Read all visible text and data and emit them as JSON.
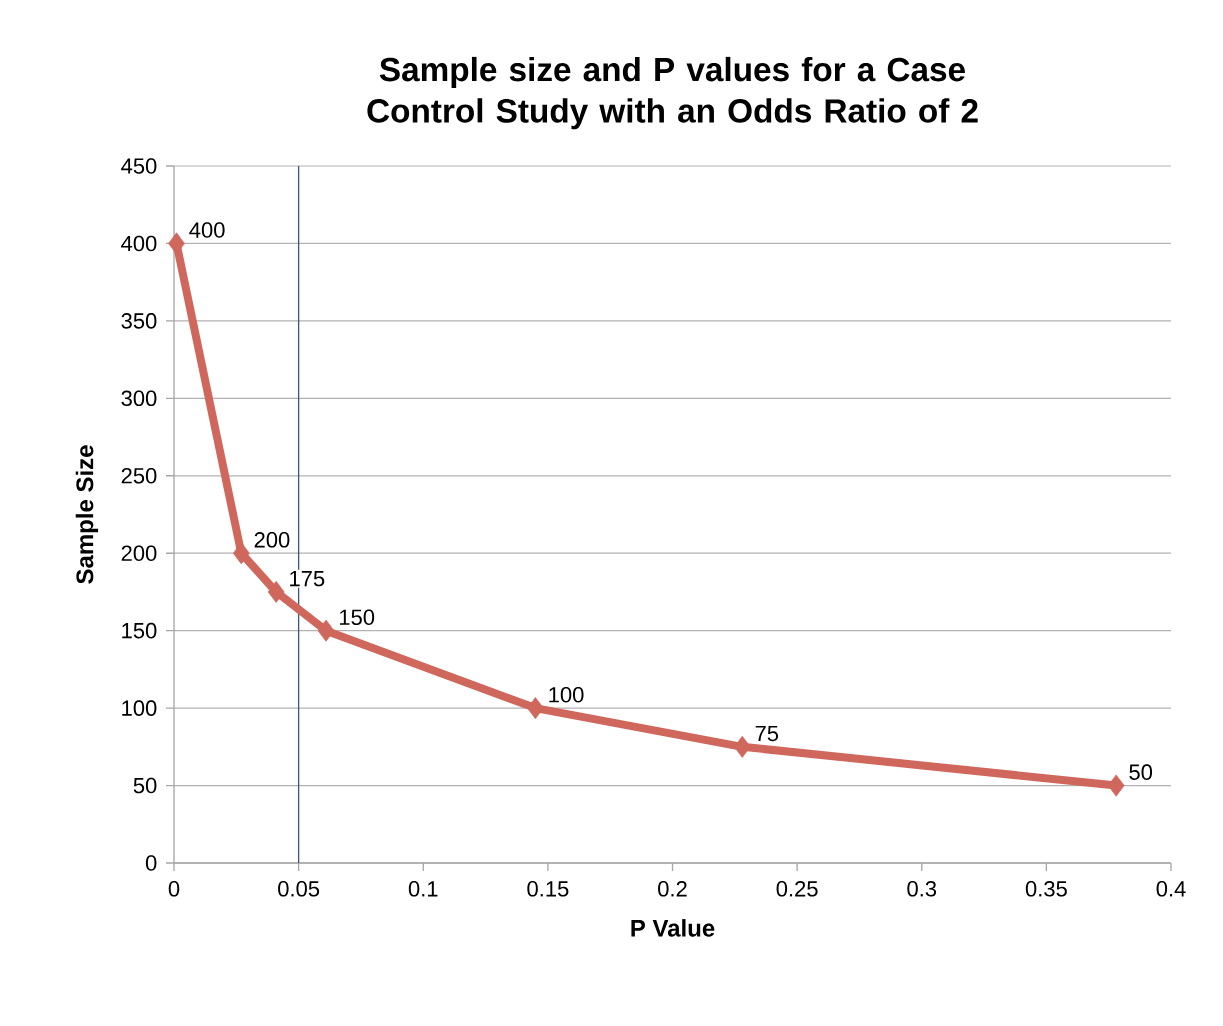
{
  "chart_data": {
    "type": "line",
    "title": "Sample size and P values for a Case Control Study with an Odds Ratio of 2",
    "xlabel": "P Value",
    "ylabel": "Sample Size",
    "x": [
      0.001,
      0.027,
      0.041,
      0.061,
      0.145,
      0.228,
      0.378
    ],
    "values": [
      400,
      200,
      175,
      150,
      100,
      75,
      50
    ],
    "color": "#d0675c",
    "marker": "diamond",
    "line_style": "solid",
    "data_labels": true,
    "xlim": [
      0,
      0.4
    ],
    "xticks": [
      0,
      0.05,
      0.1,
      0.15,
      0.2,
      0.25,
      0.3,
      0.35,
      0.4
    ],
    "ylim": [
      0,
      450
    ],
    "yticks": [
      0,
      50,
      100,
      150,
      200,
      250,
      300,
      350,
      400,
      450
    ],
    "grid": "y",
    "ref_lines": [
      {
        "axis": "x",
        "value": 0.05,
        "color": "#3d5878"
      }
    ]
  }
}
